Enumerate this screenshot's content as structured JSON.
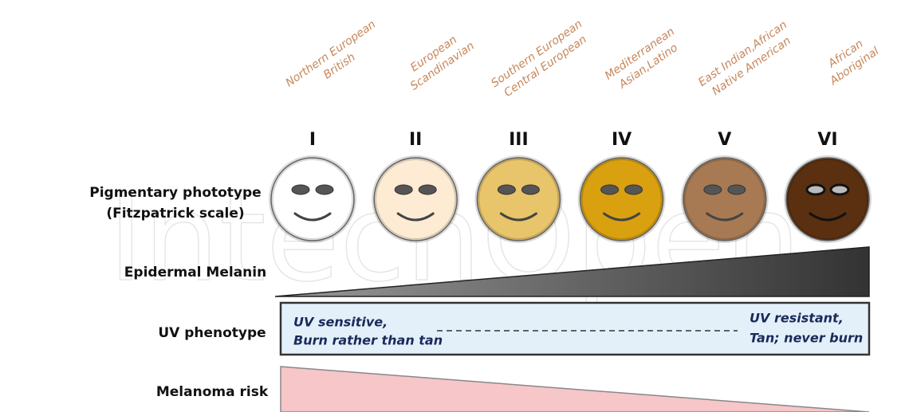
{
  "watermark": "IntechOpen",
  "row_labels": {
    "phototype": [
      "Pigmentary phototype",
      "(Fitzpatrick scale)"
    ],
    "melanin": "Epidermal Melanin",
    "uv": "UV phenotype",
    "melanoma": "Melanoma risk"
  },
  "phototypes": [
    {
      "numeral": "I",
      "population": [
        "Northern European",
        "British"
      ],
      "color": "#ffffff"
    },
    {
      "numeral": "II",
      "population": [
        "European",
        "Scandinavian"
      ],
      "color": "#fdebd3"
    },
    {
      "numeral": "III",
      "population": [
        "Southern European",
        "Central European"
      ],
      "color": "#e8c46a"
    },
    {
      "numeral": "IV",
      "population": [
        "Mediterranean",
        "Asian,Latino"
      ],
      "color": "#d9a010"
    },
    {
      "numeral": "V",
      "population": [
        "East Indian,African",
        "Native American"
      ],
      "color": "#a87a54"
    },
    {
      "numeral": "VI",
      "population": [
        "African",
        "Aboriginal"
      ],
      "color": "#5a3010"
    }
  ],
  "uv_phenotype": {
    "left": [
      "UV sensitive,",
      "Burn rather than tan"
    ],
    "right": [
      "UV resistant,",
      "Tan; never burn"
    ]
  }
}
